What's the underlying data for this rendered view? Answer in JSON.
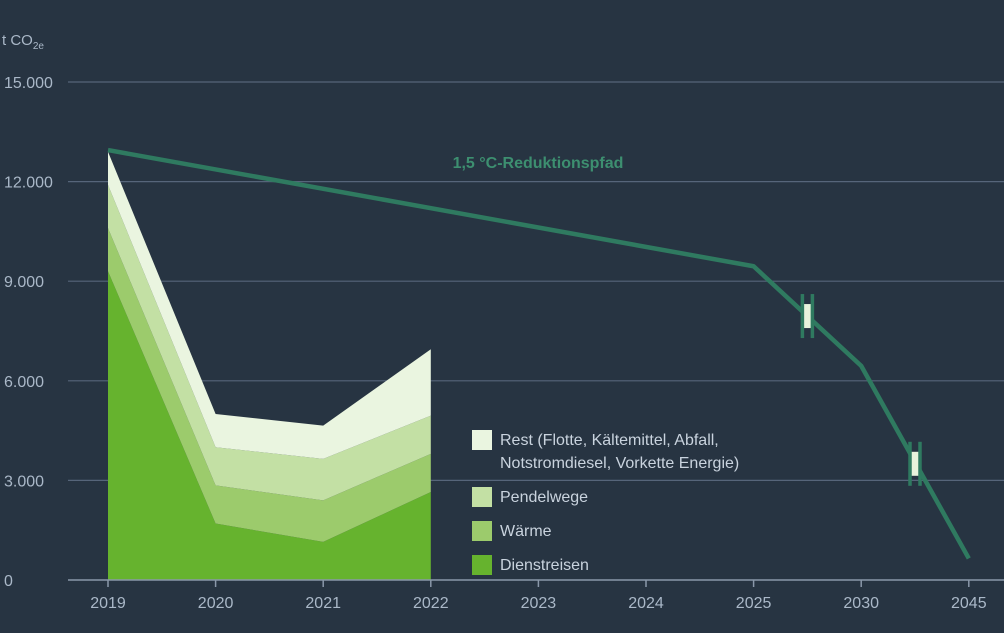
{
  "chart_data": {
    "type": "area",
    "unit_label": {
      "main": "t CO",
      "sub": "2e"
    },
    "y_ticks": [
      "15.000",
      "12.000",
      "9.000",
      "6.000",
      "3.000",
      "0"
    ],
    "ylim": [
      0,
      15000
    ],
    "categories": [
      "2019",
      "2020",
      "2021",
      "2022",
      "2023",
      "2024",
      "2025",
      "2030",
      "2045"
    ],
    "stacked_series": [
      {
        "name": "Dienstreisen",
        "color": "#66b32e",
        "values": [
          9300,
          1700,
          1150,
          2650
        ]
      },
      {
        "name": "Wärme",
        "color": "#9ccb6c",
        "values": [
          1300,
          1150,
          1250,
          1150
        ]
      },
      {
        "name": "Pendelwege",
        "color": "#c3e0a4",
        "values": [
          1300,
          1150,
          1250,
          1150
        ]
      },
      {
        "name": "Rest (Flotte, Kältemittel, Abfall, Notstromdiesel, Vorkette Energie)",
        "color": "#eaf5e0",
        "values": [
          1000,
          1000,
          1000,
          2000
        ]
      }
    ],
    "legend": [
      {
        "lines": [
          "Rest (Flotte, Kältemittel, Abfall,",
          "Notstromdiesel, Vorkette Energie)"
        ],
        "color": "#eaf5e0"
      },
      {
        "lines": [
          "Pendelwege"
        ],
        "color": "#c3e0a4"
      },
      {
        "lines": [
          "Wärme"
        ],
        "color": "#9ccb6c"
      },
      {
        "lines": [
          "Dienstreisen"
        ],
        "color": "#66b32e"
      }
    ],
    "reduction_path": {
      "label": "1,5 °C-Reduktionspfad",
      "color": "#2f7a60",
      "points": [
        {
          "cat": "2019",
          "value": 12950
        },
        {
          "cat": "2025",
          "value": 9450
        },
        {
          "cat": "2030",
          "value": 6450
        },
        {
          "cat": "2045",
          "value": 650
        }
      ],
      "axis_breaks": [
        {
          "between": [
            "2025",
            "2030"
          ],
          "value": 7950
        },
        {
          "between": [
            "2030",
            "2045"
          ],
          "value": 3500
        }
      ]
    },
    "colors": {
      "background": "#273442",
      "grid": "#56657a",
      "tick_text": "#aab8c8",
      "break_fill": "#e8f3dc"
    }
  }
}
